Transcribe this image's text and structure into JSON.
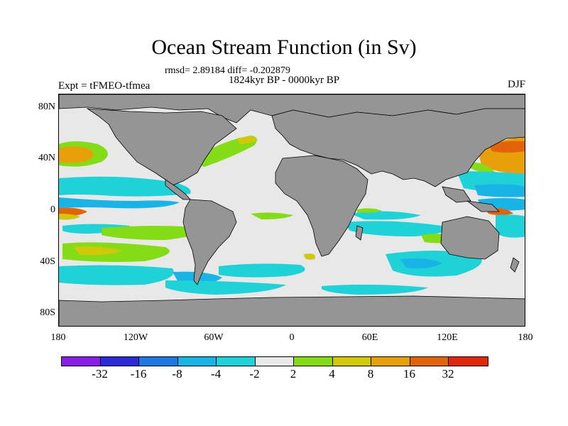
{
  "title": "Ocean Stream Function (in Sv)",
  "stats": "rmsd= 2.89184 diff= -0.202879",
  "period": "1824kyr BP - 0000kyr BP",
  "experiment": "Expt = tFMEO-tfmea",
  "season": "DJF",
  "y_ticks": [
    "80N",
    "40N",
    "0",
    "40S",
    "80S"
  ],
  "x_ticks": [
    "180",
    "120W",
    "60W",
    "0",
    "60E",
    "120E",
    "180"
  ],
  "colorbar": {
    "labels": [
      "-32",
      "-16",
      "-8",
      "-4",
      "-2",
      "2",
      "4",
      "8",
      "16",
      "32"
    ],
    "colors": [
      "#8a1ee6",
      "#2a2ad8",
      "#1a78e0",
      "#19b4e6",
      "#1ed2d8",
      "#e8e8e8",
      "#84dc16",
      "#d2c80a",
      "#e8a00a",
      "#e2640a",
      "#e02808"
    ]
  },
  "colors": {
    "land": "#959595",
    "ocean": "#e8e8e8"
  }
}
